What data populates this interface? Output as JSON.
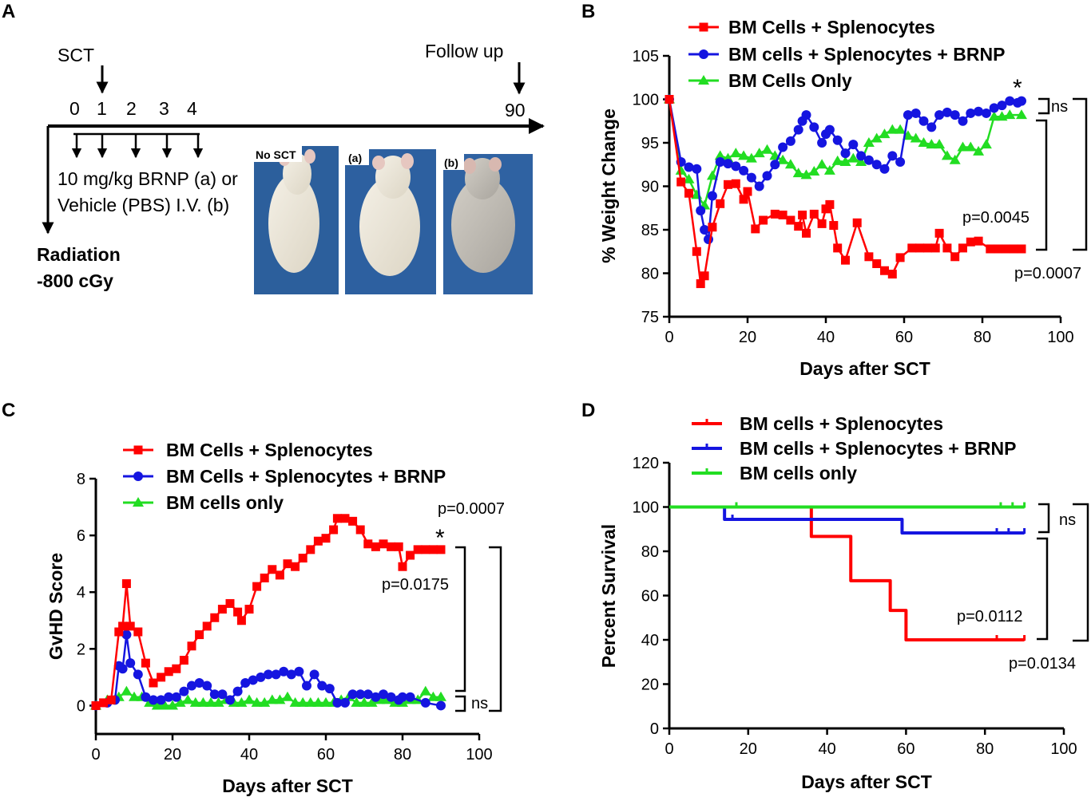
{
  "panels": {
    "a": {
      "letter": "A",
      "sct_label": "SCT",
      "follow_up_label": "Follow up",
      "day_ticks": [
        "0",
        "1",
        "2",
        "3",
        "4",
        "90"
      ],
      "treatment_line1": "10 mg/kg BRNP (a) or",
      "treatment_line2": "Vehicle (PBS) I.V. (b)",
      "radiation_line1": "Radiation",
      "radiation_line2": "-800 cGy",
      "photos": [
        "No SCT",
        "(a)",
        "(b)"
      ]
    },
    "b": {
      "letter": "B"
    },
    "c": {
      "letter": "C"
    },
    "d": {
      "letter": "D"
    }
  },
  "colors": {
    "red": "#ff0000",
    "blue": "#1515e0",
    "green": "#22dd22",
    "axis": "#000000"
  },
  "chart_data": [
    {
      "id": "weight",
      "type": "line",
      "xlabel": "Days after SCT",
      "ylabel": "% Weight Change",
      "xlim": [
        0,
        100
      ],
      "ylim": [
        75,
        105
      ],
      "xticks": [
        0,
        20,
        40,
        60,
        80,
        100
      ],
      "yticks": [
        75,
        80,
        85,
        90,
        95,
        100,
        105
      ],
      "legend_position": "top",
      "series": [
        {
          "name": "BM Cells + Splenocytes",
          "color": "red",
          "marker": "square",
          "x": [
            0,
            3,
            5,
            7,
            8,
            9,
            11,
            13,
            15,
            17,
            19,
            20,
            22,
            24,
            27,
            29,
            31,
            33,
            34,
            35,
            37,
            39,
            40,
            41,
            42,
            43,
            45,
            48,
            51,
            53,
            55,
            57,
            59,
            62,
            64,
            66,
            68,
            69,
            71,
            73,
            75,
            77,
            79,
            82,
            84,
            86,
            88,
            90
          ],
          "y": [
            100,
            90.5,
            89.2,
            82.5,
            78.8,
            79.7,
            85.3,
            88,
            90.2,
            90.3,
            88.5,
            89.4,
            85.1,
            86.1,
            86.8,
            86.7,
            86.1,
            85.4,
            86.7,
            84.6,
            86.8,
            85.7,
            87.4,
            87.9,
            85.5,
            82.9,
            81.5,
            85.8,
            81.9,
            81.1,
            80.3,
            79.9,
            81.8,
            82.9,
            82.9,
            82.9,
            82.9,
            84.6,
            82.9,
            81.9,
            82.9,
            83.6,
            83.7,
            82.8,
            82.8,
            82.8,
            82.8,
            82.8
          ]
        },
        {
          "name": "BM cells + Splenocytes + BRNP",
          "color": "blue",
          "marker": "circle",
          "x": [
            0,
            3,
            5,
            7,
            8,
            9,
            10,
            11,
            13,
            15,
            17,
            19,
            21,
            23,
            25,
            27,
            29,
            31,
            33,
            34,
            35,
            37,
            39,
            40,
            41,
            43,
            45,
            47,
            49,
            51,
            53,
            55,
            57,
            59,
            61,
            63,
            65,
            67,
            69,
            71,
            73,
            75,
            77,
            79,
            81,
            83,
            85,
            87,
            89,
            90
          ],
          "y": [
            100,
            92.8,
            92.2,
            92,
            87.2,
            85,
            83.9,
            88.9,
            92.8,
            92.6,
            92.3,
            91.8,
            91,
            90,
            91.2,
            92.5,
            94.5,
            95.2,
            96.5,
            97.5,
            98.2,
            96.8,
            95,
            96,
            96.5,
            95.3,
            93.8,
            94.8,
            93.5,
            93,
            92.5,
            92,
            93.5,
            92.8,
            98.2,
            98.4,
            97.5,
            96.8,
            98.2,
            98.5,
            98.2,
            97.5,
            98.4,
            98.6,
            98.4,
            99,
            99.3,
            99.8,
            99.6,
            99.8
          ]
        },
        {
          "name": "BM Cells Only",
          "color": "green",
          "marker": "triangle",
          "x": [
            0,
            3,
            5,
            7,
            9,
            11,
            13,
            15,
            17,
            19,
            21,
            23,
            25,
            27,
            29,
            31,
            33,
            35,
            37,
            39,
            41,
            43,
            45,
            47,
            49,
            51,
            53,
            55,
            57,
            59,
            61,
            63,
            65,
            67,
            69,
            71,
            73,
            75,
            77,
            79,
            81,
            83,
            85,
            87,
            90
          ],
          "y": [
            100,
            91.8,
            90.8,
            89,
            87.8,
            91.2,
            93.5,
            93.2,
            93.8,
            93.5,
            93.2,
            93.8,
            94.2,
            93.5,
            93,
            92.5,
            91.5,
            91.3,
            91.7,
            92.5,
            91.8,
            92.9,
            92.8,
            93.2,
            92.8,
            95,
            95.5,
            96,
            96.5,
            96.5,
            95.8,
            95.5,
            95,
            94.8,
            94.8,
            93.5,
            93,
            94.5,
            94.5,
            94,
            94.8,
            98,
            98,
            98.2,
            98.2
          ]
        }
      ],
      "annotations": {
        "ns": "ns",
        "p1": "p=0.0045",
        "p2": "p=0.0007",
        "star": "*"
      }
    },
    {
      "id": "gvhd",
      "type": "line",
      "xlabel": "Days after SCT",
      "ylabel": "GvHD Score",
      "xlim": [
        0,
        100
      ],
      "ylim": [
        -1,
        8
      ],
      "xticks": [
        0,
        20,
        40,
        60,
        80,
        100
      ],
      "yticks": [
        0,
        2,
        4,
        6,
        8
      ],
      "legend_position": "top",
      "series": [
        {
          "name": "BM Cells + Splenocytes",
          "color": "red",
          "marker": "square",
          "x": [
            0,
            2,
            4,
            6,
            7,
            8,
            9,
            11,
            13,
            15,
            17,
            19,
            21,
            23,
            25,
            27,
            29,
            31,
            33,
            35,
            37,
            38,
            40,
            42,
            44,
            46,
            48,
            50,
            52,
            54,
            56,
            58,
            60,
            62,
            63,
            65,
            67,
            69,
            71,
            73,
            75,
            77,
            79,
            80,
            82,
            84,
            86,
            88,
            90
          ],
          "y": [
            0,
            0.1,
            0.2,
            2.6,
            2.8,
            4.3,
            2.8,
            2.6,
            1.5,
            0.8,
            1.0,
            1.2,
            1.3,
            1.6,
            2.1,
            2.5,
            2.8,
            3.1,
            3.4,
            3.6,
            3.3,
            3.0,
            3.4,
            4.2,
            4.5,
            4.8,
            4.6,
            5.0,
            4.9,
            5.2,
            5.5,
            5.8,
            5.9,
            6.2,
            6.6,
            6.6,
            6.5,
            6.2,
            5.7,
            5.6,
            5.7,
            5.6,
            5.6,
            4.9,
            5.3,
            5.5,
            5.5,
            5.5,
            5.5
          ]
        },
        {
          "name": "BM Cells + Splenocytes + BRNP",
          "color": "blue",
          "marker": "circle",
          "x": [
            0,
            3,
            5,
            6,
            7,
            8,
            9,
            11,
            13,
            15,
            17,
            19,
            21,
            23,
            25,
            27,
            29,
            31,
            33,
            35,
            37,
            39,
            41,
            43,
            45,
            47,
            49,
            51,
            53,
            55,
            57,
            59,
            61,
            63,
            65,
            67,
            69,
            71,
            73,
            75,
            77,
            79,
            80,
            82,
            86,
            90
          ],
          "y": [
            0,
            0.1,
            0.2,
            1.4,
            1.3,
            2.5,
            1.5,
            1.1,
            0.3,
            0.2,
            0.2,
            0.3,
            0.3,
            0.5,
            0.7,
            0.8,
            0.7,
            0.4,
            0.4,
            0.2,
            0.5,
            0.8,
            0.9,
            1.0,
            1.1,
            1.1,
            1.2,
            1.1,
            1.2,
            0.7,
            1.1,
            0.7,
            0.6,
            0.1,
            0.1,
            0.4,
            0.4,
            0.4,
            0.3,
            0.4,
            0.3,
            0.2,
            0.3,
            0.3,
            0.1,
            0.0
          ]
        },
        {
          "name": "BM cells only",
          "color": "green",
          "marker": "triangle",
          "x": [
            0,
            3,
            6,
            8,
            10,
            12,
            14,
            16,
            18,
            20,
            22,
            24,
            26,
            28,
            30,
            32,
            34,
            36,
            38,
            40,
            42,
            44,
            46,
            48,
            50,
            52,
            54,
            56,
            58,
            60,
            62,
            64,
            66,
            68,
            70,
            72,
            74,
            76,
            78,
            80,
            82,
            84,
            86,
            88,
            90
          ],
          "y": [
            0,
            0.2,
            0.3,
            0.5,
            0.3,
            0.3,
            0.1,
            0.0,
            0.0,
            0.0,
            0.1,
            0.2,
            0.1,
            0.1,
            0.1,
            0.1,
            0.2,
            0.1,
            0.1,
            0.2,
            0.1,
            0.1,
            0.2,
            0.2,
            0.3,
            0.1,
            0.1,
            0.1,
            0.1,
            0.1,
            0.1,
            0.2,
            0.3,
            0.1,
            0.1,
            0.1,
            0.2,
            0.2,
            0.1,
            0.1,
            0.2,
            0.2,
            0.5,
            0.3,
            0.3
          ]
        }
      ],
      "annotations": {
        "p1": "p=0.0007",
        "star": "*",
        "p2": "p=0.0175",
        "ns": "ns"
      }
    },
    {
      "id": "survival",
      "type": "line",
      "step": true,
      "xlabel": "Days after SCT",
      "ylabel": "Percent Survival",
      "xlim": [
        0,
        100
      ],
      "ylim": [
        0,
        120
      ],
      "xticks": [
        0,
        20,
        40,
        60,
        80,
        100
      ],
      "yticks": [
        0,
        20,
        40,
        60,
        80,
        100,
        120
      ],
      "legend_position": "top",
      "series": [
        {
          "name": "BM cells + Splenocytes",
          "color": "red",
          "x": [
            0,
            36,
            46,
            56,
            60,
            90
          ],
          "y": [
            100,
            86.7,
            66.7,
            53.3,
            40,
            40
          ],
          "censor_x": [
            83,
            90
          ]
        },
        {
          "name": "BM cells + Splenocytes + BRNP",
          "color": "blue",
          "x": [
            0,
            14,
            59,
            90
          ],
          "y": [
            100,
            94.4,
            88.3,
            88.3
          ],
          "censor_x": [
            16,
            83,
            86,
            90
          ]
        },
        {
          "name": "BM cells only",
          "color": "green",
          "x": [
            0,
            90
          ],
          "y": [
            100,
            100
          ],
          "censor_x": [
            17,
            84,
            87,
            90
          ]
        }
      ],
      "annotations": {
        "ns": "ns",
        "p1": "p=0.0112",
        "p2": "p=0.0134"
      }
    }
  ]
}
